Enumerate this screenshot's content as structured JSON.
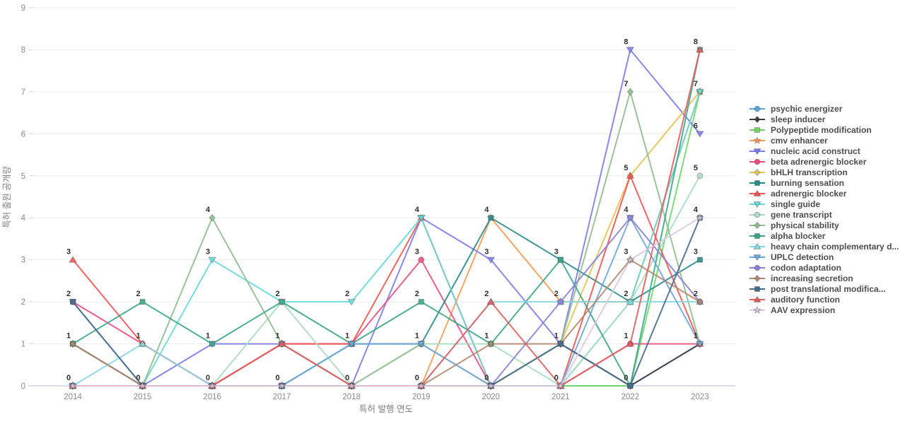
{
  "chart_data": {
    "type": "line",
    "title": "",
    "xlabel": "특허 발행 연도",
    "ylabel": "특허 출원 공개량",
    "x": [
      2014,
      2015,
      2016,
      2017,
      2018,
      2019,
      2020,
      2021,
      2022,
      2023
    ],
    "ylim": [
      0,
      9
    ],
    "yticks": [
      0,
      1,
      2,
      3,
      4,
      5,
      6,
      7,
      8,
      9
    ],
    "grid": true,
    "legend_position": "right",
    "point_label_style": "one bold label per distinct value per year, above markers",
    "axis_color": "#c9d2e8",
    "grid_color": "#ebebeb",
    "tick_label_color": "#8a8a8a",
    "point_label_color": "#2e2e2e",
    "series": [
      {
        "name": "psychic energizer",
        "color": "#5BA3D9",
        "marker": "circle",
        "values": [
          0,
          0,
          0,
          0,
          0,
          0,
          0,
          0,
          0,
          1
        ]
      },
      {
        "name": "sleep inducer",
        "color": "#3D3D3D",
        "marker": "diamond",
        "values": [
          1,
          0,
          0,
          1,
          0,
          0,
          0,
          1,
          0,
          1
        ]
      },
      {
        "name": "Polypeptide modification",
        "color": "#70D765",
        "marker": "square",
        "values": [
          0,
          0,
          0,
          0,
          0,
          0,
          0,
          0,
          0,
          7
        ]
      },
      {
        "name": "cmv enhancer",
        "color": "#F79B54",
        "marker": "star",
        "values": [
          0,
          0,
          0,
          0,
          0,
          0,
          4,
          2,
          2,
          7
        ]
      },
      {
        "name": "nucleic acid construct",
        "color": "#7B7BEB",
        "marker": "triangle-down",
        "values": [
          0,
          0,
          1,
          1,
          0,
          4,
          3,
          1,
          8,
          6
        ]
      },
      {
        "name": "beta adrenergic blocker",
        "color": "#E94F7E",
        "marker": "circle",
        "values": [
          2,
          1,
          0,
          1,
          1,
          3,
          0,
          0,
          1,
          1
        ]
      },
      {
        "name": "bHLH transcription",
        "color": "#E5C454",
        "marker": "diamond",
        "values": [
          0,
          0,
          0,
          0,
          0,
          0,
          0,
          1,
          5,
          7
        ]
      },
      {
        "name": "burning sensation",
        "color": "#278A8C",
        "marker": "square",
        "values": [
          1,
          0,
          0,
          0,
          1,
          1,
          4,
          3,
          2,
          3
        ]
      },
      {
        "name": "adrenergic blocker",
        "color": "#F05450",
        "marker": "triangle-up",
        "values": [
          3,
          1,
          0,
          1,
          1,
          4,
          0,
          0,
          5,
          1
        ]
      },
      {
        "name": "single guide",
        "color": "#66D9D9",
        "marker": "triangle-down",
        "values": [
          0,
          0,
          3,
          2,
          2,
          4,
          0,
          0,
          2,
          7
        ]
      },
      {
        "name": "gene transcript",
        "color": "#A9DCC0",
        "marker": "circle",
        "values": [
          0,
          0,
          0,
          2,
          0,
          1,
          1,
          0,
          2,
          5
        ]
      },
      {
        "name": "physical stability",
        "color": "#8FBC8F",
        "marker": "diamond",
        "values": [
          0,
          0,
          4,
          1,
          0,
          1,
          0,
          1,
          7,
          1
        ]
      },
      {
        "name": "alpha blocker",
        "color": "#3AA688",
        "marker": "square",
        "values": [
          1,
          2,
          1,
          2,
          1,
          2,
          1,
          3,
          0,
          8
        ]
      },
      {
        "name": "heavy chain complementary d...",
        "color": "#84D9E6",
        "marker": "triangle-up",
        "values": [
          0,
          1,
          0,
          0,
          0,
          0,
          2,
          2,
          2,
          2
        ]
      },
      {
        "name": "UPLC detection",
        "color": "#6EA6DC",
        "marker": "triangle-down",
        "values": [
          2,
          0,
          0,
          0,
          1,
          1,
          0,
          0,
          4,
          1
        ]
      },
      {
        "name": "codon adaptation",
        "color": "#8B7FD7",
        "marker": "circle",
        "values": [
          0,
          0,
          0,
          0,
          0,
          0,
          0,
          2,
          4,
          2
        ]
      },
      {
        "name": "increasing secretion",
        "color": "#B3876B",
        "marker": "diamond",
        "values": [
          1,
          0,
          0,
          0,
          0,
          0,
          1,
          1,
          3,
          2
        ]
      },
      {
        "name": "post translational modifica...",
        "color": "#456B8C",
        "marker": "square",
        "values": [
          2,
          0,
          0,
          0,
          0,
          0,
          0,
          1,
          0,
          4
        ]
      },
      {
        "name": "auditory function",
        "color": "#E35D5D",
        "marker": "triangle-up",
        "values": [
          0,
          0,
          0,
          1,
          0,
          0,
          2,
          0,
          1,
          8
        ]
      },
      {
        "name": "AAV expression",
        "color": "#DCC6E0",
        "marker": "star",
        "values": [
          0,
          0,
          0,
          0,
          0,
          0,
          0,
          0,
          3,
          4
        ]
      }
    ]
  }
}
